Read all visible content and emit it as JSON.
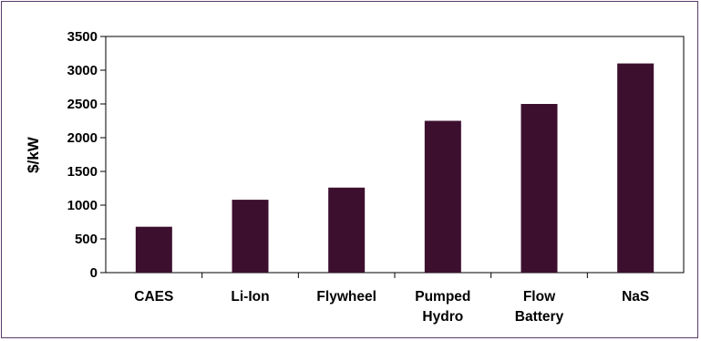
{
  "chart_data": {
    "type": "bar",
    "categories": [
      [
        "CAES"
      ],
      [
        "Li-Ion"
      ],
      [
        "Flywheel"
      ],
      [
        "Pumped",
        "Hydro"
      ],
      [
        "Flow",
        "Battery"
      ],
      [
        "NaS"
      ]
    ],
    "values": [
      680,
      1080,
      1260,
      2250,
      2500,
      3100
    ],
    "ylabel": "$/kW",
    "xlabel": "",
    "title": "",
    "ylim": [
      0,
      3500
    ],
    "yticks": [
      0,
      500,
      1000,
      1500,
      2000,
      2500,
      3000,
      3500
    ],
    "grid": false,
    "bar_color": "#3d0f2f",
    "frame_color": "#5a3a6a"
  }
}
